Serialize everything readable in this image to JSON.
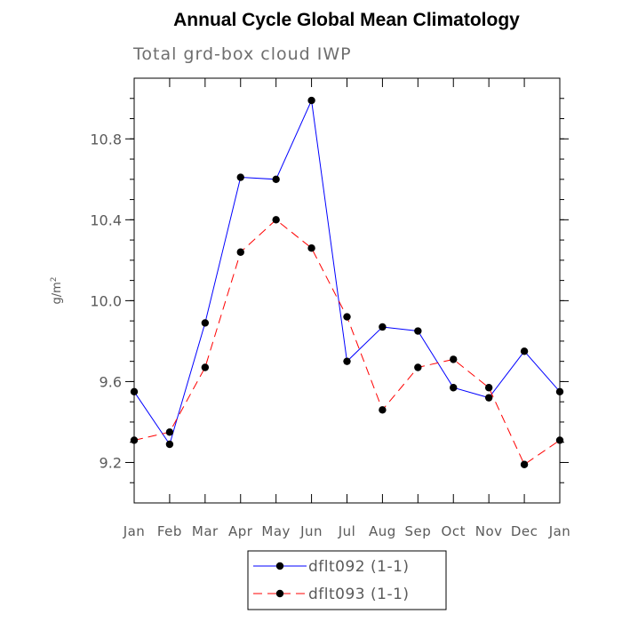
{
  "chart_data": {
    "type": "line",
    "title": "Annual Cycle Global Mean Climatology",
    "subtitle": "Total grd-box cloud IWP",
    "xlabel": "",
    "ylabel": "g/m",
    "ylabel_sup": "2",
    "categories": [
      "Jan",
      "Feb",
      "Mar",
      "Apr",
      "May",
      "Jun",
      "Jul",
      "Aug",
      "Sep",
      "Oct",
      "Nov",
      "Dec",
      "Jan"
    ],
    "ylim": [
      9.0,
      11.1
    ],
    "yticks": [
      9.2,
      9.6,
      10.0,
      10.4,
      10.8
    ],
    "ytick_labels": [
      "9.2",
      "9.6",
      "10.0",
      "10.4",
      "10.8"
    ],
    "ygrid": false,
    "legend_position": "bottom",
    "series": [
      {
        "name": "dflt092 (1-1)",
        "color": "#0000ff",
        "dash": "solid",
        "marker": "dot",
        "values": [
          9.55,
          9.29,
          9.89,
          10.61,
          10.6,
          10.99,
          9.7,
          9.87,
          9.85,
          9.57,
          9.52,
          9.75,
          9.55
        ]
      },
      {
        "name": "dflt093 (1-1)",
        "color": "#ff0000",
        "dash": "dashed",
        "marker": "dot",
        "values": [
          9.31,
          9.35,
          9.67,
          10.24,
          10.4,
          10.26,
          9.92,
          9.46,
          9.67,
          9.71,
          9.57,
          9.19,
          9.31
        ]
      }
    ]
  }
}
